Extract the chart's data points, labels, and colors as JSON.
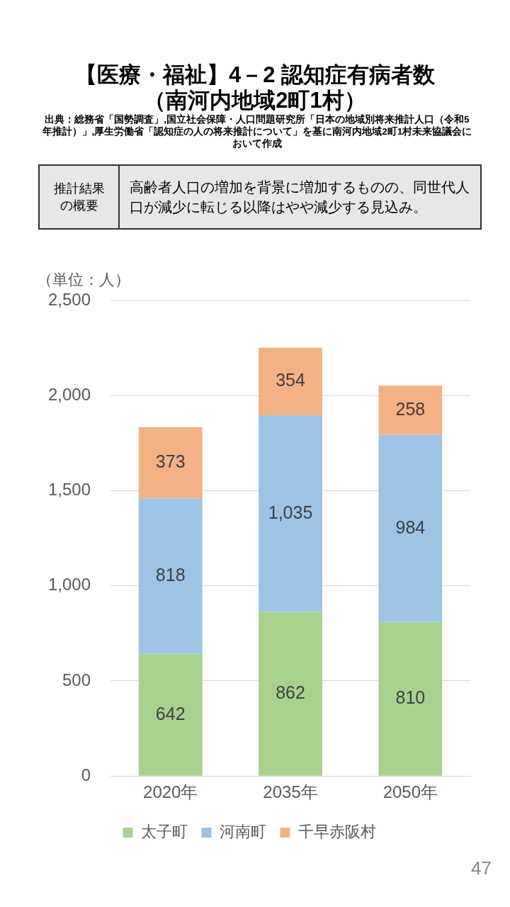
{
  "chart_data": {
    "type": "bar",
    "title": "【医療・福祉】4－2 認知症有病者数（南河内地域2町1村）",
    "subtitle": "出典：総務省「国勢調査」,国立社会保障・人口問題研究所「日本の地域別将来推計人口（令和5年推計）」,厚生労働省「認知症の人の将来推計について」を基に南河内地域2町1村未来協議会において作成",
    "ylabel": "（単位：人）",
    "annotations": [
      "推計結果の概要",
      "高齢者人口の増加を背景に増加するものの、同世代人口が減少に転じる以降はやや減少する見込み。",
      "47"
    ],
    "categories": [
      "2020年",
      "2035年",
      "2050年"
    ],
    "series": [
      {
        "name": "太子町",
        "color": "#a9d18e",
        "values": [
          642,
          862,
          810
        ],
        "value_labels": [
          "642",
          "862",
          "810"
        ]
      },
      {
        "name": "河南町",
        "color": "#9dc3e6",
        "values": [
          818,
          1035,
          984
        ],
        "value_labels": [
          "818",
          "1,035",
          "984"
        ]
      },
      {
        "name": "千早赤阪村",
        "color": "#f4b183",
        "values": [
          373,
          354,
          258
        ],
        "value_labels": [
          "373",
          "354",
          "258"
        ]
      }
    ],
    "stacked": true,
    "ylim": [
      0,
      2500
    ],
    "yticks": [
      {
        "value": 0,
        "label": "0"
      },
      {
        "value": 500,
        "label": "500"
      },
      {
        "value": 1000,
        "label": "1,000"
      },
      {
        "value": 1500,
        "label": "1,500"
      },
      {
        "value": 2000,
        "label": "2,000"
      },
      {
        "value": 2500,
        "label": "2,500"
      }
    ],
    "grid": "y",
    "legend": "bottom"
  }
}
